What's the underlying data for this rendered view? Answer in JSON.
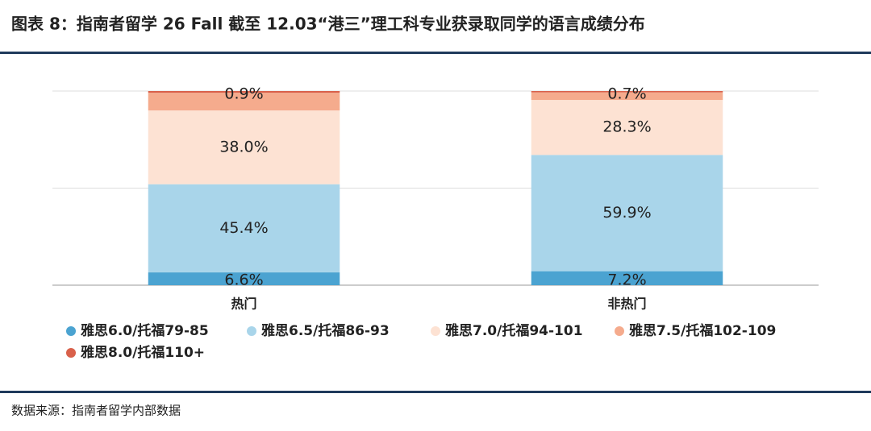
{
  "chart_data": {
    "type": "stacked_bar",
    "title": "图表 8：指南者留学 26 Fall 截至 12.03“港三”理工科专业获录取同学的语言成绩分布",
    "source": "数据来源：指南者留学内部数据",
    "categories": [
      "热门",
      "非热门"
    ],
    "series": [
      {
        "name": "雅思6.0/托福79-85",
        "color": "#4ba3d1",
        "values": [
          6.6,
          7.2
        ],
        "value_labels": [
          "6.6%",
          "7.2%"
        ]
      },
      {
        "name": "雅思6.5/托福86-93",
        "color": "#a9d5ea",
        "values": [
          45.4,
          59.9
        ],
        "value_labels": [
          "45.4%",
          "59.9%"
        ]
      },
      {
        "name": "雅思7.0/托福94-101",
        "color": "#fde2d3",
        "values": [
          38.0,
          28.3
        ],
        "value_labels": [
          "38.0%",
          "28.3%"
        ]
      },
      {
        "name": "雅思7.5/托福102-109",
        "color": "#f5ab8d",
        "values": [
          9.1,
          3.9
        ]
      },
      {
        "name": "雅思8.0/托福110+",
        "color": "#d9614b",
        "values": [
          0.9,
          0.7
        ],
        "value_labels": [
          "0.9%",
          "0.7%"
        ]
      }
    ],
    "ylim": [
      0,
      100
    ],
    "yticks": [
      0,
      50,
      100
    ],
    "grid": true
  }
}
